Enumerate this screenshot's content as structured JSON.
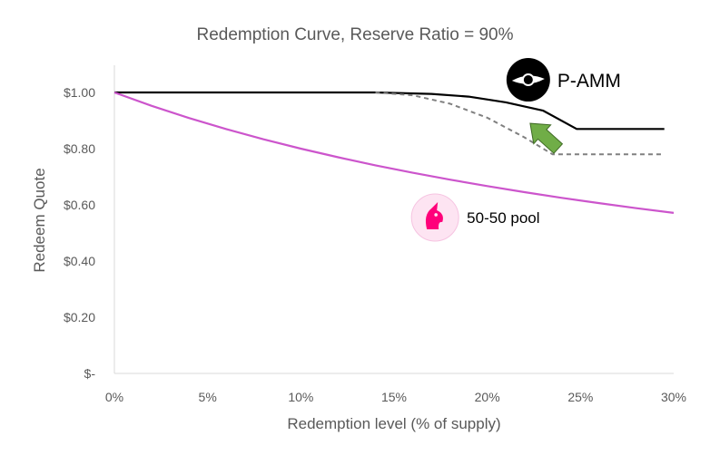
{
  "chart_data": {
    "type": "line",
    "title": "Redemption Curve, Reserve Ratio = 90%",
    "xlabel": "Redemption level (% of supply)",
    "ylabel": "Redeem Quote",
    "xlim": [
      0,
      30
    ],
    "ylim": [
      0,
      1.0
    ],
    "x_ticks": [
      {
        "value": 0,
        "label": "0%"
      },
      {
        "value": 5,
        "label": "5%"
      },
      {
        "value": 10,
        "label": "10%"
      },
      {
        "value": 15,
        "label": "15%"
      },
      {
        "value": 20,
        "label": "20%"
      },
      {
        "value": 25,
        "label": "25%"
      },
      {
        "value": 30,
        "label": "30%"
      }
    ],
    "y_ticks": [
      {
        "value": 0,
        "label": "$-"
      },
      {
        "value": 0.2,
        "label": "$0.20"
      },
      {
        "value": 0.4,
        "label": "$0.40"
      },
      {
        "value": 0.6,
        "label": "$0.60"
      },
      {
        "value": 0.8,
        "label": "$0.80"
      },
      {
        "value": 1.0,
        "label": "$1.00"
      }
    ],
    "grid": false,
    "series": [
      {
        "name": "P-AMM",
        "color": "#000000",
        "style": "solid",
        "points": [
          [
            0,
            1.0
          ],
          [
            14,
            1.0
          ],
          [
            17,
            0.995
          ],
          [
            19,
            0.985
          ],
          [
            21,
            0.965
          ],
          [
            23,
            0.935
          ],
          [
            24.8,
            0.87
          ],
          [
            29.5,
            0.87
          ]
        ]
      },
      {
        "color": "#808080",
        "style": "dashed",
        "points": [
          [
            14,
            1.0
          ],
          [
            16,
            0.99
          ],
          [
            18,
            0.96
          ],
          [
            20,
            0.91
          ],
          [
            22,
            0.84
          ],
          [
            23.5,
            0.78
          ],
          [
            29.5,
            0.78
          ]
        ]
      },
      {
        "name": "50-50 pool",
        "color": "#cc55cc",
        "style": "solid",
        "points": [
          [
            0,
            1.0
          ],
          [
            2,
            0.9524
          ],
          [
            4,
            0.9091
          ],
          [
            6,
            0.8696
          ],
          [
            8,
            0.8333
          ],
          [
            10,
            0.8
          ],
          [
            12,
            0.7692
          ],
          [
            14,
            0.7407
          ],
          [
            16,
            0.7143
          ],
          [
            18,
            0.6897
          ],
          [
            20,
            0.6667
          ],
          [
            22,
            0.6452
          ],
          [
            24,
            0.625
          ],
          [
            26,
            0.6061
          ],
          [
            28,
            0.5882
          ],
          [
            30,
            0.5714
          ]
        ]
      }
    ],
    "annotations": [
      {
        "text": "P-AMM",
        "icon": "gyroscope-logo-icon",
        "x": 22.2,
        "y": 1.045
      },
      {
        "text": "50-50 pool",
        "icon": "uniswap-unicorn-icon",
        "x": 17.2,
        "y": 0.555
      },
      {
        "icon": "green-up-arrow-icon",
        "color": "#70ad47",
        "from": [
          23.8,
          0.8
        ],
        "to": [
          22.3,
          0.89
        ]
      }
    ]
  }
}
